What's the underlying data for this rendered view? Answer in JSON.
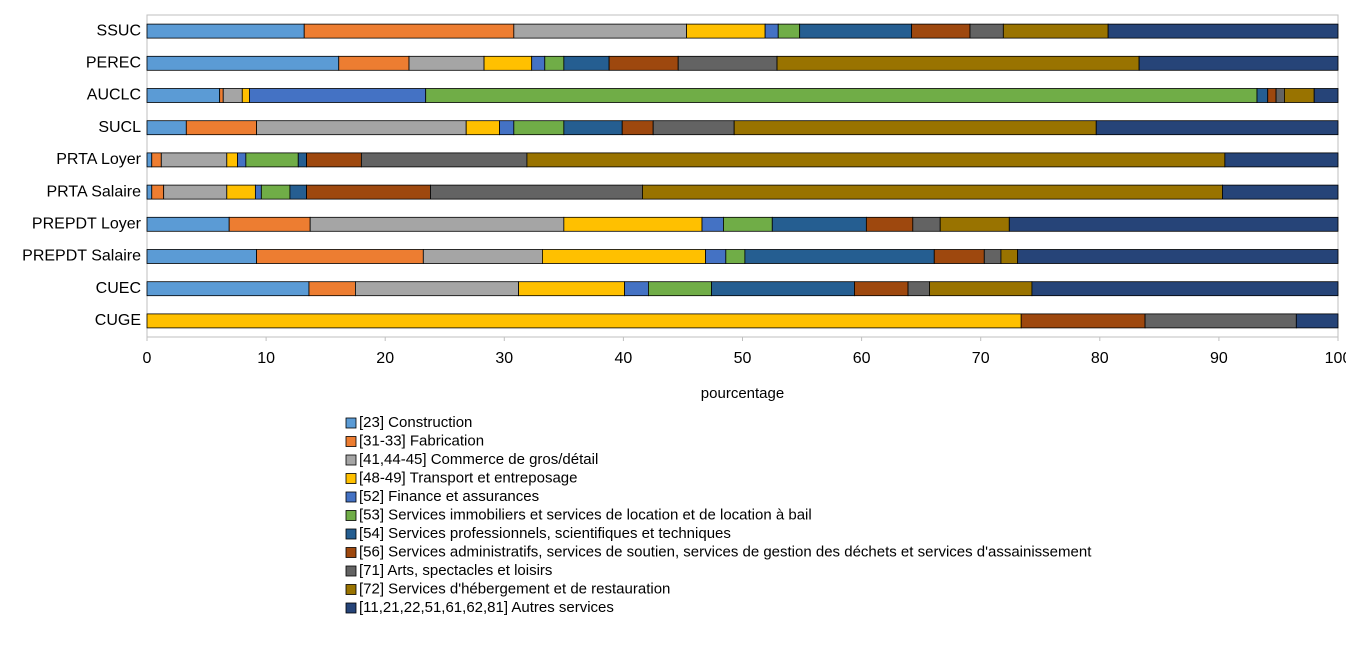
{
  "chart_data": {
    "type": "stacked-bar-horizontal",
    "categories": [
      "SSUC",
      "PEREC",
      "AUCLC",
      "SUCL",
      "PRTA Loyer",
      "PRTA Salaire",
      "PREPDT Loyer",
      "PREPDT Salaire",
      "CUEC",
      "CUGE"
    ],
    "series": [
      {
        "name": "[23] Construction",
        "color": "#5b9bd5",
        "values": [
          13.2,
          16.1,
          6.1,
          3.3,
          0.4,
          0.4,
          6.9,
          9.2,
          13.6,
          0
        ]
      },
      {
        "name": "[31-33] Fabrication",
        "color": "#ed7d31",
        "values": [
          17.6,
          5.9,
          0.3,
          5.9,
          0.8,
          1.0,
          6.8,
          14.0,
          3.9,
          0
        ]
      },
      {
        "name": "[41,44-45] Commerce de gros/détail",
        "color": "#a5a5a5",
        "values": [
          14.5,
          6.3,
          1.6,
          17.6,
          5.5,
          5.3,
          21.3,
          10.0,
          13.7,
          0
        ]
      },
      {
        "name": "[48-49] Transport et entreposage",
        "color": "#ffc000",
        "values": [
          6.6,
          4.0,
          0.6,
          2.8,
          0.9,
          2.4,
          11.6,
          13.7,
          8.9,
          73.4
        ]
      },
      {
        "name": "[52] Finance et assurances",
        "color": "#4472c4",
        "values": [
          1.1,
          1.1,
          14.8,
          1.2,
          0.7,
          0.5,
          1.8,
          1.7,
          2.0,
          0
        ]
      },
      {
        "name": "[53] Services immobiliers et services de location et de location à bail",
        "color": "#70ad47",
        "values": [
          1.8,
          1.6,
          69.8,
          4.2,
          4.4,
          2.4,
          4.1,
          1.6,
          5.3,
          0
        ]
      },
      {
        "name": "[54] Services professionnels, scientifiques et techniques",
        "color": "#255e91",
        "values": [
          9.4,
          3.8,
          0.9,
          4.9,
          0.7,
          1.4,
          7.9,
          15.9,
          12.0,
          0
        ]
      },
      {
        "name": "[56] Services administratifs, services de soutien, services de gestion des déchets et services d'assainissement",
        "color": "#9e480e",
        "values": [
          4.9,
          5.8,
          0.7,
          2.6,
          4.6,
          10.4,
          3.9,
          4.2,
          4.5,
          10.4
        ]
      },
      {
        "name": "[71] Arts, spectacles et loisirs",
        "color": "#636363",
        "values": [
          2.8,
          8.3,
          0.7,
          6.8,
          13.9,
          17.8,
          2.3,
          1.4,
          1.8,
          12.7
        ]
      },
      {
        "name": "[72] Services d'hébergement et de restauration",
        "color": "#997300",
        "values": [
          8.8,
          30.4,
          2.5,
          30.4,
          58.6,
          48.7,
          5.8,
          1.4,
          8.6,
          0
        ]
      },
      {
        "name": "[11,21,22,51,61,62,81] Autres services",
        "color": "#264478",
        "values": [
          19.3,
          16.7,
          2.0,
          20.3,
          9.5,
          9.7,
          27.6,
          26.9,
          25.7,
          3.5
        ]
      }
    ],
    "xlabel": "pourcentage",
    "xlim": [
      0,
      100
    ],
    "xticks": [
      0,
      10,
      20,
      30,
      40,
      50,
      60,
      70,
      80,
      90,
      100
    ]
  }
}
